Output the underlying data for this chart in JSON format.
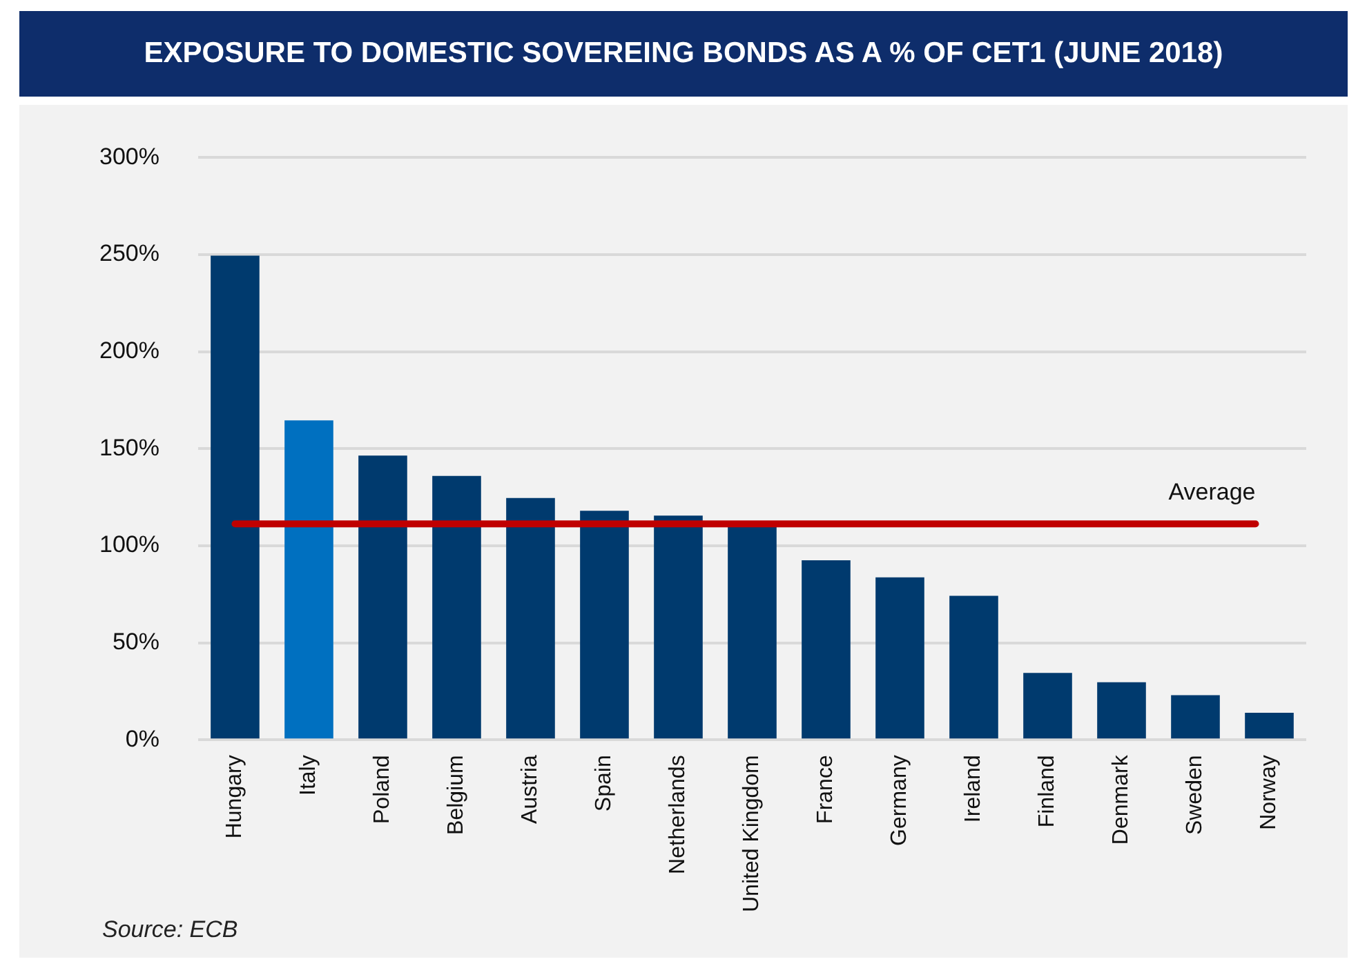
{
  "chart_data": {
    "type": "bar",
    "title": "EXPOSURE TO DOMESTIC SOVEREING BONDS AS A % OF CET1  (JUNE 2018)",
    "categories": [
      "Hungary",
      "Italy",
      "Poland",
      "Belgium",
      "Austria",
      "Spain",
      "Netherlands",
      "United Kingdom",
      "France",
      "Germany",
      "Ireland",
      "Finland",
      "Denmark",
      "Sweden",
      "Norway"
    ],
    "values": [
      249.5,
      164.6,
      146.5,
      136,
      124.6,
      118,
      115.6,
      111,
      92.5,
      83.7,
      74.2,
      34.5,
      29.7,
      23,
      14
    ],
    "colors": [
      "#003a6e",
      "#0070c0",
      "#003a6e",
      "#003a6e",
      "#003a6e",
      "#003a6e",
      "#003a6e",
      "#003a6e",
      "#003a6e",
      "#003a6e",
      "#003a6e",
      "#003a6e",
      "#003a6e",
      "#003a6e",
      "#003a6e"
    ],
    "ylim": [
      0,
      300
    ],
    "yticks": [
      {
        "value": 0,
        "label": "0%"
      },
      {
        "value": 50,
        "label": "50%"
      },
      {
        "value": 100,
        "label": "100%"
      },
      {
        "value": 150,
        "label": "150%"
      },
      {
        "value": 200,
        "label": "200%"
      },
      {
        "value": 250,
        "label": "250%"
      },
      {
        "value": 300,
        "label": "300%"
      }
    ],
    "grid": "y",
    "ref_lines": [
      {
        "axis": "y",
        "value": 111.3,
        "label": "Average",
        "color": "#c00000"
      }
    ],
    "annotations": [
      "Source: ECB"
    ]
  }
}
